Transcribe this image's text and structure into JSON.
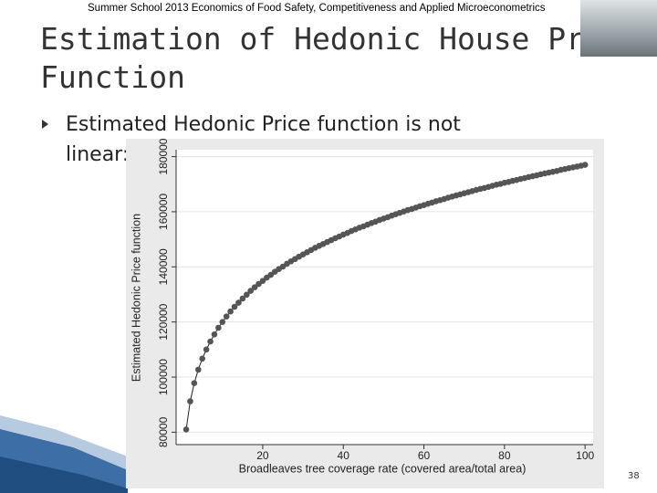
{
  "header": "Summer School 2013 Economics of Food Safety, Competitiveness and Applied Microeconometrics",
  "title": [
    "Estimation of Hedonic House Price",
    "Function"
  ],
  "bullet": [
    "Estimated Hedonic Price function is not",
    "linear:"
  ],
  "page_number": "38",
  "chart_data": {
    "type": "line",
    "markers": true,
    "color": "#555555",
    "xlabel": "Broadleaves tree coverage rate (covered area/total area)",
    "ylabel": "Estimated Hedonic Price function",
    "x": [
      1,
      2,
      3,
      4,
      5,
      6,
      7,
      8,
      9,
      10,
      11,
      12,
      13,
      14,
      15,
      16,
      17,
      18,
      19,
      20,
      21,
      22,
      23,
      24,
      25,
      26,
      27,
      28,
      29,
      30,
      31,
      32,
      33,
      34,
      35,
      36,
      37,
      38,
      39,
      40,
      41,
      42,
      43,
      44,
      45,
      46,
      47,
      48,
      49,
      50,
      51,
      52,
      53,
      54,
      55,
      56,
      57,
      58,
      59,
      60,
      61,
      62,
      63,
      64,
      65,
      66,
      67,
      68,
      69,
      70,
      71,
      72,
      73,
      74,
      75,
      76,
      77,
      78,
      79,
      80,
      81,
      82,
      83,
      84,
      85,
      86,
      87,
      88,
      89,
      90,
      91,
      92,
      93,
      94,
      95,
      96,
      97,
      98,
      99,
      100
    ],
    "values": [
      81000,
      91200,
      97800,
      102700,
      106700,
      110000,
      112900,
      115500,
      117900,
      120000,
      122000,
      123800,
      125500,
      127000,
      128500,
      129900,
      131300,
      132600,
      133800,
      134900,
      136100,
      137100,
      138200,
      139200,
      140100,
      141100,
      142000,
      142800,
      143700,
      144500,
      145300,
      146100,
      146900,
      147600,
      148300,
      149000,
      149700,
      150400,
      151000,
      151700,
      152300,
      153000,
      153600,
      154200,
      154700,
      155300,
      155900,
      156400,
      157000,
      157500,
      158000,
      158600,
      159100,
      159600,
      160100,
      160600,
      161000,
      161500,
      162000,
      162400,
      162900,
      163300,
      163800,
      164200,
      164600,
      165100,
      165500,
      165900,
      166300,
      166700,
      167100,
      167500,
      167900,
      168300,
      168600,
      169000,
      169400,
      169800,
      170100,
      170500,
      170800,
      171200,
      171500,
      171900,
      172200,
      172600,
      172900,
      173200,
      173600,
      173900,
      174200,
      174500,
      174800,
      175200,
      175500,
      175800,
      176100,
      176400,
      176700,
      177000
    ],
    "xlim": [
      -1.5,
      102
    ],
    "xticks": [
      20,
      40,
      60,
      80,
      100
    ],
    "ylim": [
      75500,
      182500
    ],
    "yticks": [
      80000,
      100000,
      120000,
      140000,
      160000,
      180000
    ],
    "grid": true
  }
}
